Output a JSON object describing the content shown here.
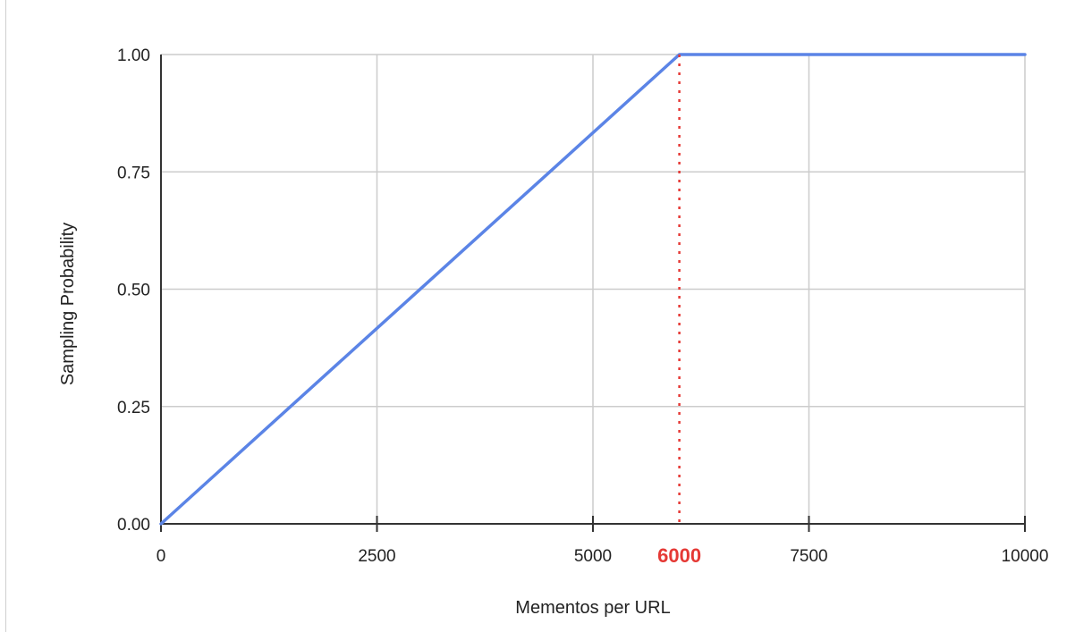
{
  "chart_data": {
    "type": "line",
    "title": "",
    "xlabel": "Mementos per URL",
    "ylabel": "Sampling Probability",
    "xlim": [
      0,
      10000
    ],
    "ylim": [
      0,
      1
    ],
    "x_ticks": [
      {
        "value": 0,
        "label": "0"
      },
      {
        "value": 2500,
        "label": "2500"
      },
      {
        "value": 5000,
        "label": "5000"
      },
      {
        "value": 7500,
        "label": "7500"
      },
      {
        "value": 10000,
        "label": "10000"
      }
    ],
    "y_ticks": [
      {
        "value": 0,
        "label": "0.00"
      },
      {
        "value": 0.25,
        "label": "0.25"
      },
      {
        "value": 0.5,
        "label": "0.50"
      },
      {
        "value": 0.75,
        "label": "0.75"
      },
      {
        "value": 1,
        "label": "1.00"
      }
    ],
    "grid": true,
    "series": [
      {
        "x": [
          0,
          6000,
          10000
        ],
        "y": [
          0,
          1,
          1
        ],
        "color": "#5b84e6"
      }
    ],
    "annotations": [
      {
        "type": "vertical-dotted-line",
        "x": 6000,
        "label": "6000",
        "color": "#e53935"
      }
    ]
  }
}
